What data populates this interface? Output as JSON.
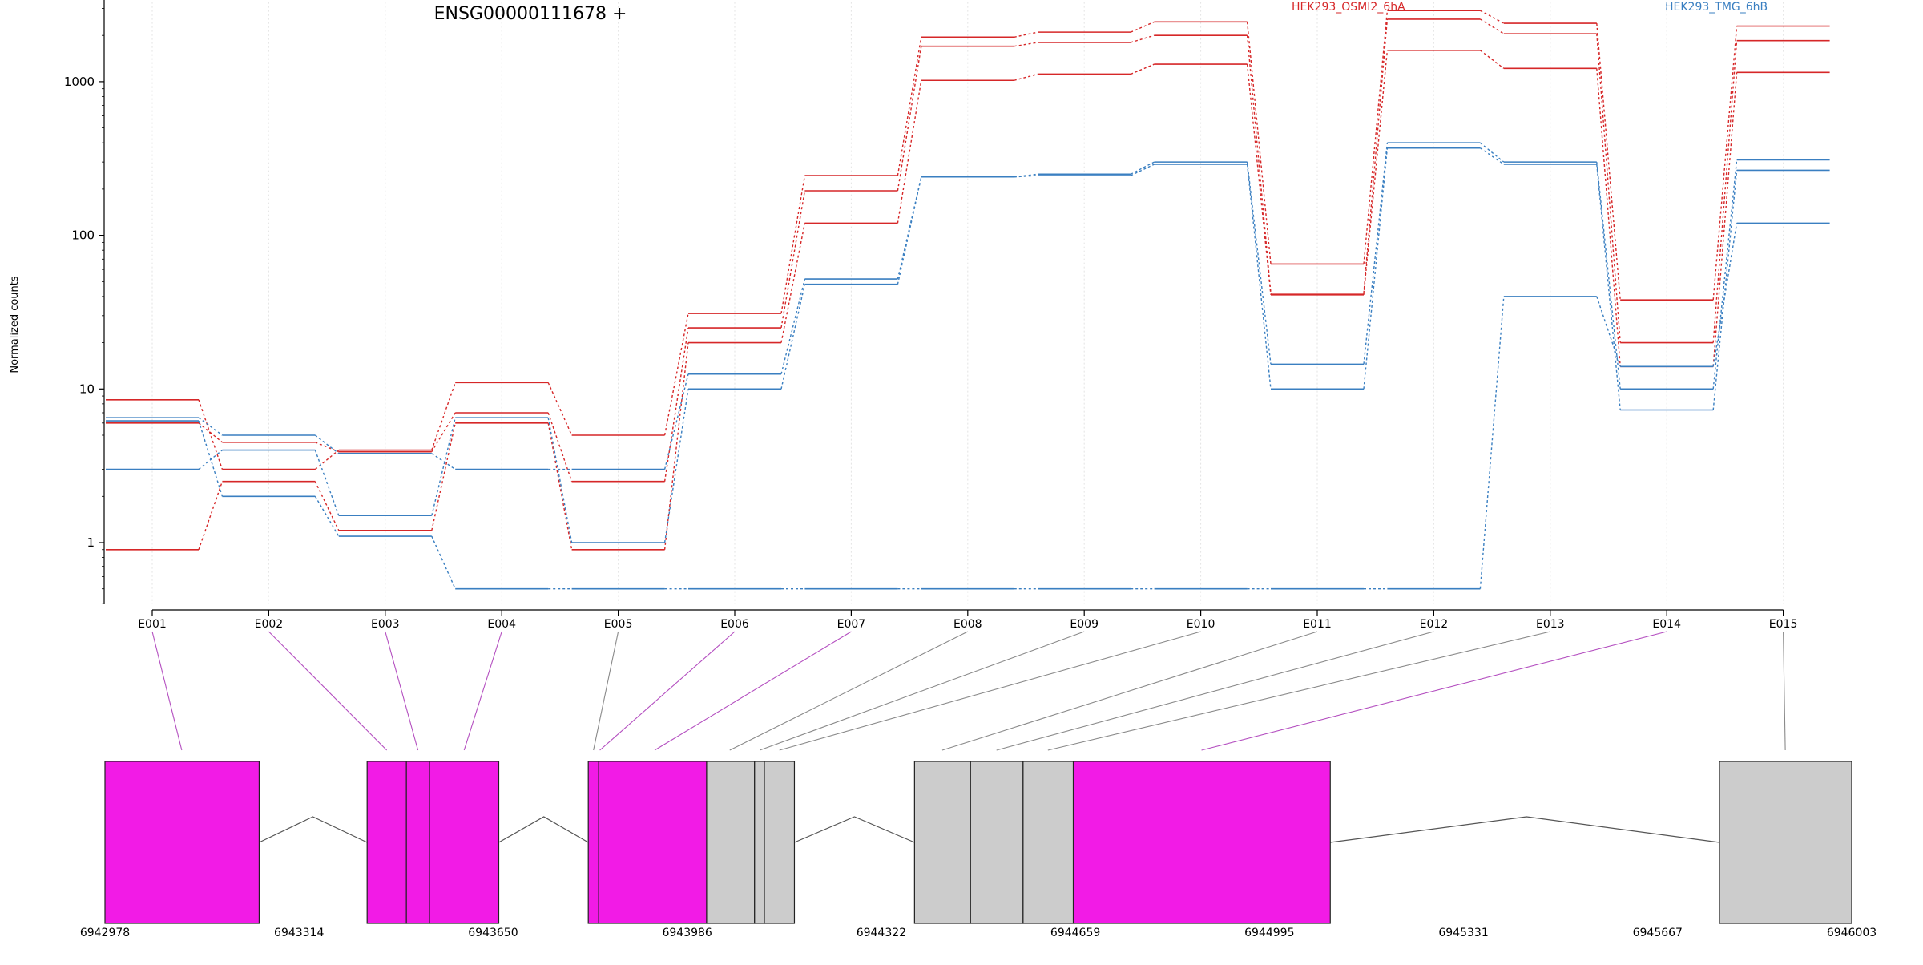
{
  "chart_data": {
    "type": "line",
    "title": "ENSG00000111678 +",
    "ylabel": "Normalized counts",
    "xlabel": "",
    "yscale": "log",
    "ylim": [
      0.4,
      3500
    ],
    "yticks": [
      1,
      10,
      100,
      1000
    ],
    "ytick_labels": [
      "1",
      "10",
      "100",
      "1000"
    ],
    "grid": "vertical dotted at each exon",
    "legend_placement": "top-right",
    "categories": [
      "E001",
      "E002",
      "E003",
      "E004",
      "E005",
      "E006",
      "E007",
      "E008",
      "E009",
      "E010",
      "E011",
      "E012",
      "E013",
      "E014",
      "E015"
    ],
    "colors": {
      "HEK293_OSMI2_6hA": "#d62728",
      "HEK293_TMG_6hB": "#3a7fc1",
      "highlight_exon": "#f21be6",
      "plain_exon": "#cccccc",
      "highlight_link": "#b44fc0",
      "plain_link": "#8a8a8a"
    },
    "legend": [
      {
        "label": "HEK293_OSMI2_6hA",
        "color": "#d62728"
      },
      {
        "label": "HEK293_TMG_6hB",
        "color": "#3a7fc1"
      }
    ],
    "series": [
      {
        "group": "HEK293_OSMI2_6hA",
        "values": [
          8.5,
          3.0,
          4.0,
          11.0,
          5.0,
          31,
          245,
          1950,
          2100,
          2450,
          65,
          2900,
          2400,
          38,
          2300
        ]
      },
      {
        "group": "HEK293_OSMI2_6hA",
        "values": [
          6.0,
          4.5,
          3.9,
          7.0,
          2.5,
          25,
          195,
          1700,
          1800,
          2000,
          42,
          2550,
          2050,
          20,
          1850
        ]
      },
      {
        "group": "HEK293_OSMI2_6hA",
        "values": [
          0.9,
          2.5,
          1.2,
          6.0,
          0.9,
          20,
          120,
          1020,
          1120,
          1300,
          41,
          1600,
          1220,
          14,
          1150
        ]
      },
      {
        "group": "HEK293_TMG_6hB",
        "values": [
          6.5,
          5.0,
          3.8,
          3.0,
          3.0,
          12.5,
          52,
          240,
          250,
          300,
          14.5,
          400,
          300,
          10,
          310
        ]
      },
      {
        "group": "HEK293_TMG_6hB",
        "values": [
          3.0,
          4.0,
          1.5,
          6.5,
          1.0,
          10,
          48,
          240,
          245,
          290,
          10,
          370,
          290,
          7.3,
          265
        ]
      },
      {
        "group": "HEK293_TMG_6hB",
        "values": [
          6.2,
          2.0,
          1.1,
          0.5,
          0.5,
          0.5,
          0.5,
          0.5,
          0.5,
          0.5,
          0.5,
          0.5,
          40,
          14,
          120
        ]
      }
    ],
    "gene_model": {
      "genomic_ticks": [
        "6942978",
        "6943314",
        "6943650",
        "6943986",
        "6944322",
        "6944659",
        "6944995",
        "6945331",
        "6945667",
        "6946003"
      ],
      "genomic_range": [
        6942978,
        6946003
      ],
      "exon_blocks": [
        {
          "start": 6942978,
          "end": 6943245,
          "highlight": true
        },
        {
          "start": 6943432,
          "end": 6943500,
          "highlight": true
        },
        {
          "start": 6943500,
          "end": 6943540,
          "highlight": true
        },
        {
          "start": 6943540,
          "end": 6943660,
          "highlight": true
        },
        {
          "start": 6943815,
          "end": 6943833,
          "highlight": true
        },
        {
          "start": 6943833,
          "end": 6944020,
          "highlight": true
        },
        {
          "start": 6944020,
          "end": 6944103,
          "highlight": false
        },
        {
          "start": 6944103,
          "end": 6944120,
          "highlight": false
        },
        {
          "start": 6944120,
          "end": 6944172,
          "highlight": false
        },
        {
          "start": 6944380,
          "end": 6944477,
          "highlight": false
        },
        {
          "start": 6944477,
          "end": 6944568,
          "highlight": false
        },
        {
          "start": 6944568,
          "end": 6944655,
          "highlight": false
        },
        {
          "start": 6944655,
          "end": 6945100,
          "highlight": true
        },
        {
          "start": 6945774,
          "end": 6946003,
          "highlight": false
        }
      ],
      "introns": [
        {
          "start": 6943245,
          "end": 6943432,
          "peak": 6943338
        },
        {
          "start": 6943660,
          "end": 6943815,
          "peak": 6943738
        },
        {
          "start": 6944172,
          "end": 6944380,
          "peak": 6944276
        },
        {
          "start": 6945100,
          "end": 6945774,
          "peak": 6945440
        }
      ],
      "links": [
        {
          "exon": "E001",
          "pos": 6943111,
          "highlight": true
        },
        {
          "exon": "E002",
          "pos": 6943466,
          "highlight": true
        },
        {
          "exon": "E003",
          "pos": 6943520,
          "highlight": true
        },
        {
          "exon": "E004",
          "pos": 6943600,
          "highlight": true
        },
        {
          "exon": "E005",
          "pos": 6943824,
          "highlight": false
        },
        {
          "exon": "E006",
          "pos": 6943835,
          "highlight": true
        },
        {
          "exon": "E007",
          "pos": 6943930,
          "highlight": true
        },
        {
          "exon": "E008",
          "pos": 6944060,
          "highlight": false
        },
        {
          "exon": "E009",
          "pos": 6944112,
          "highlight": false
        },
        {
          "exon": "E010",
          "pos": 6944146,
          "highlight": false
        },
        {
          "exon": "E011",
          "pos": 6944428,
          "highlight": false
        },
        {
          "exon": "E012",
          "pos": 6944522,
          "highlight": false
        },
        {
          "exon": "E013",
          "pos": 6944611,
          "highlight": false
        },
        {
          "exon": "E014",
          "pos": 6944877,
          "highlight": true
        },
        {
          "exon": "E015",
          "pos": 6945888,
          "highlight": false
        }
      ]
    }
  }
}
